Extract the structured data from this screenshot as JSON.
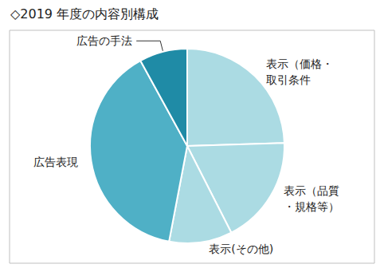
{
  "chart_data": {
    "type": "pie",
    "title": "◇2019 年度の内容別構成",
    "categories": [
      "表示（価格・\n取引条件",
      "表示（品質\n・規格等）",
      "表示(その他)",
      "広告表現",
      "広告の手法"
    ],
    "values": [
      24.5,
      18,
      10.5,
      39,
      8
    ],
    "colors": [
      "#abdbe3",
      "#abdbe3",
      "#abdbe3",
      "#4fb0c6",
      "#1f8ba6"
    ]
  }
}
